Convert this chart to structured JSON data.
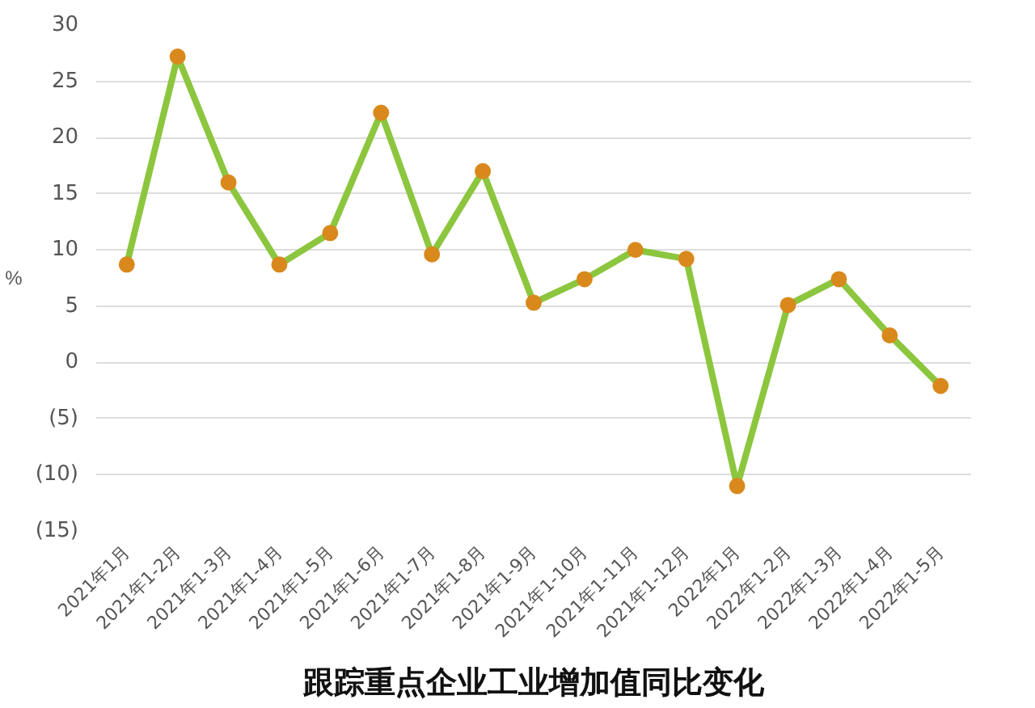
{
  "chart_data": {
    "type": "line",
    "title": "跟踪重点企业工业增加值同比变化",
    "ylabel": "%",
    "categories": [
      "2021年1月",
      "2021年1-2月",
      "2021年1-3月",
      "2021年1-4月",
      "2021年1-5月",
      "2021年1-6月",
      "2021年1-7月",
      "2021年1-8月",
      "2021年1-9月",
      "2021年1-10月",
      "2021年1-11月",
      "2021年1-12月",
      "2022年1月",
      "2022年1-2月",
      "2022年1-3月",
      "2022年1-4月",
      "2022年1-5月"
    ],
    "series": [
      {
        "color": "#8cc63e",
        "colors": [
          "#d9891c",
          "#d9891c",
          "#d9891c",
          "#d9891c",
          "#d9891c",
          "#d9891c",
          "#d9891c",
          "#d9891c",
          "#d9891c",
          "#d9891c",
          "#d9891c",
          "#d9891c",
          "#d9891c",
          "#d9891c",
          "#d9891c",
          "#d9891c",
          "#d9891c"
        ],
        "values": [
          8.7,
          27.2,
          16.0,
          8.7,
          11.5,
          22.2,
          9.6,
          17.0,
          5.3,
          7.4,
          10.0,
          9.2,
          -11.0,
          5.1,
          7.4,
          2.4,
          -2.1
        ]
      }
    ],
    "ylim": [
      -15,
      30
    ],
    "yticks": [
      {
        "value": -15,
        "label": "(15)"
      },
      {
        "value": -10,
        "label": "(10)"
      },
      {
        "value": -5,
        "label": "(5)"
      },
      0,
      5,
      10,
      15,
      20,
      25,
      30
    ],
    "grid": "y",
    "marker": "circle",
    "line_style": "solid"
  }
}
